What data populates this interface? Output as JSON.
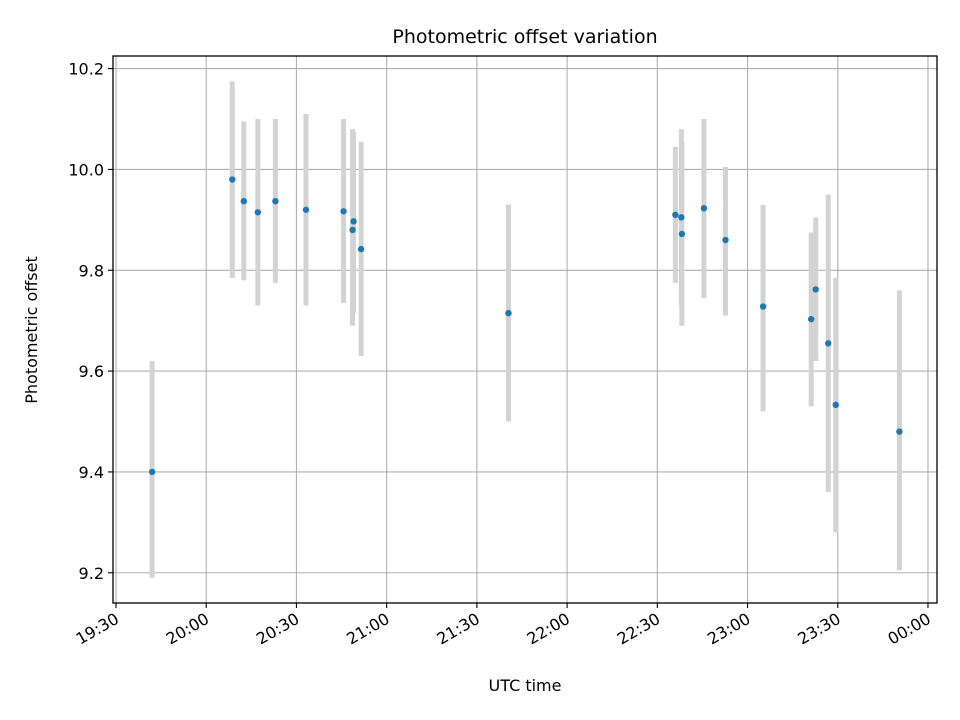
{
  "chart_data": {
    "type": "scatter",
    "title": "Photometric offset variation",
    "xlabel": "UTC time",
    "ylabel": "Photometric offset",
    "xlim": [
      "19:29",
      "00:03"
    ],
    "ylim": [
      9.14,
      10.225
    ],
    "x_ticks": [
      "19:30",
      "20:00",
      "20:30",
      "21:00",
      "21:30",
      "22:00",
      "22:30",
      "23:00",
      "23:30",
      "00:00"
    ],
    "y_ticks": [
      9.2,
      9.4,
      9.6,
      9.8,
      10.0,
      10.2
    ],
    "grid": true,
    "colors": {
      "point": "#1f77b4",
      "errorbar": "#d3d3d3",
      "grid": "#b0b0b0",
      "axes": "#000000"
    },
    "series": [
      {
        "points": [
          {
            "x": "19:42:00",
            "y": 9.4,
            "low": 9.19,
            "high": 9.62
          },
          {
            "x": "20:08:40",
            "y": 9.98,
            "low": 9.785,
            "high": 10.175
          },
          {
            "x": "20:12:30",
            "y": 9.937,
            "low": 9.78,
            "high": 10.095
          },
          {
            "x": "20:17:10",
            "y": 9.915,
            "low": 9.73,
            "high": 10.1
          },
          {
            "x": "20:23:00",
            "y": 9.937,
            "low": 9.775,
            "high": 10.1
          },
          {
            "x": "20:33:10",
            "y": 9.92,
            "low": 9.73,
            "high": 10.11
          },
          {
            "x": "20:45:40",
            "y": 9.917,
            "low": 9.735,
            "high": 10.1
          },
          {
            "x": "20:48:40",
            "y": 9.88,
            "low": 9.69,
            "high": 10.08
          },
          {
            "x": "20:49:00",
            "y": 9.897,
            "low": 9.715,
            "high": 10.075
          },
          {
            "x": "20:51:30",
            "y": 9.842,
            "low": 9.63,
            "high": 10.055
          },
          {
            "x": "21:40:30",
            "y": 9.715,
            "low": 9.5,
            "high": 9.93
          },
          {
            "x": "22:36:00",
            "y": 9.91,
            "low": 9.775,
            "high": 10.045
          },
          {
            "x": "22:38:00",
            "y": 9.905,
            "low": 9.73,
            "high": 10.08
          },
          {
            "x": "22:38:10",
            "y": 9.872,
            "low": 9.69,
            "high": 10.055
          },
          {
            "x": "22:45:30",
            "y": 9.923,
            "low": 9.745,
            "high": 10.1
          },
          {
            "x": "22:52:40",
            "y": 9.86,
            "low": 9.71,
            "high": 10.005
          },
          {
            "x": "23:05:10",
            "y": 9.728,
            "low": 9.52,
            "high": 9.93
          },
          {
            "x": "23:21:10",
            "y": 9.703,
            "low": 9.53,
            "high": 9.875
          },
          {
            "x": "23:22:40",
            "y": 9.762,
            "low": 9.62,
            "high": 9.905
          },
          {
            "x": "23:26:50",
            "y": 9.655,
            "low": 9.36,
            "high": 9.95
          },
          {
            "x": "23:29:20",
            "y": 9.533,
            "low": 9.28,
            "high": 9.785
          },
          {
            "x": "23:50:30",
            "y": 9.48,
            "low": 9.205,
            "high": 9.76
          }
        ]
      }
    ]
  }
}
